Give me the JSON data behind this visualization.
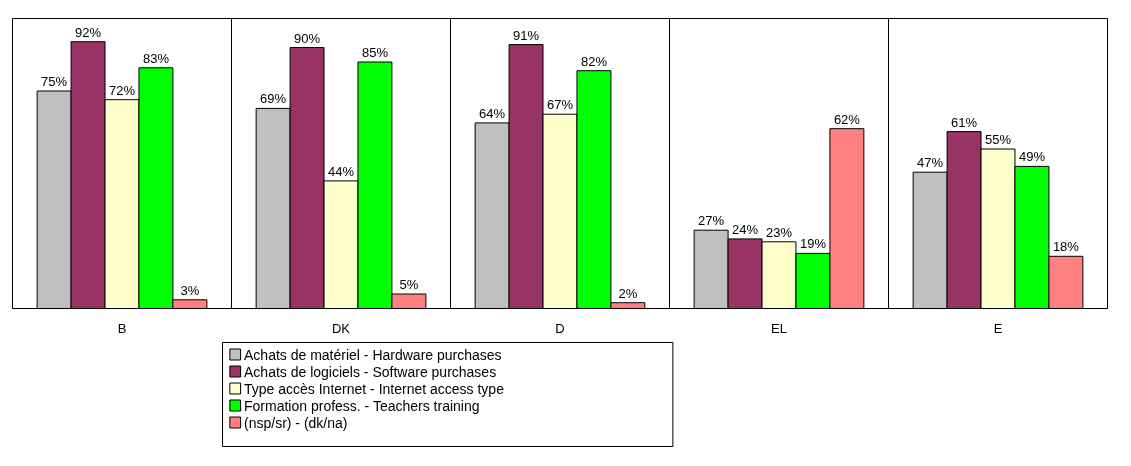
{
  "chart_data": {
    "type": "bar",
    "categories": [
      "B",
      "DK",
      "D",
      "EL",
      "E"
    ],
    "series": [
      {
        "name": "Achats de matériel - Hardware purchases",
        "color": "#c0c0c0",
        "values": [
          75,
          69,
          64,
          27,
          47
        ],
        "value_labels": [
          "75%",
          "69%",
          "64%",
          "27%",
          "47%"
        ]
      },
      {
        "name": "Achats de logiciels - Software purchases",
        "color": "#993366",
        "values": [
          92,
          90,
          91,
          24,
          61
        ],
        "value_labels": [
          "92%",
          "90%",
          "91%",
          "24%",
          "61%"
        ]
      },
      {
        "name": "Type accès Internet - Internet access type",
        "color": "#ffffcc",
        "values": [
          72,
          44,
          67,
          23,
          55
        ],
        "value_labels": [
          "72%",
          "44%",
          "67%",
          "23%",
          "55%"
        ]
      },
      {
        "name": "Formation profess. - Teachers training",
        "color": "#00ff00",
        "values": [
          83,
          85,
          82,
          19,
          49
        ],
        "value_labels": [
          "83%",
          "85%",
          "82%",
          "19%",
          "49%"
        ]
      },
      {
        "name": "(nsp/sr) - (dk/na)",
        "color": "#ff8080",
        "values": [
          3,
          5,
          2,
          62,
          18
        ],
        "value_labels": [
          "3%",
          "5%",
          "2%",
          "62%",
          "18%"
        ]
      }
    ],
    "ylim": [
      0,
      100
    ],
    "tick_labels": "x",
    "grid": "x",
    "legend": "bottom"
  }
}
